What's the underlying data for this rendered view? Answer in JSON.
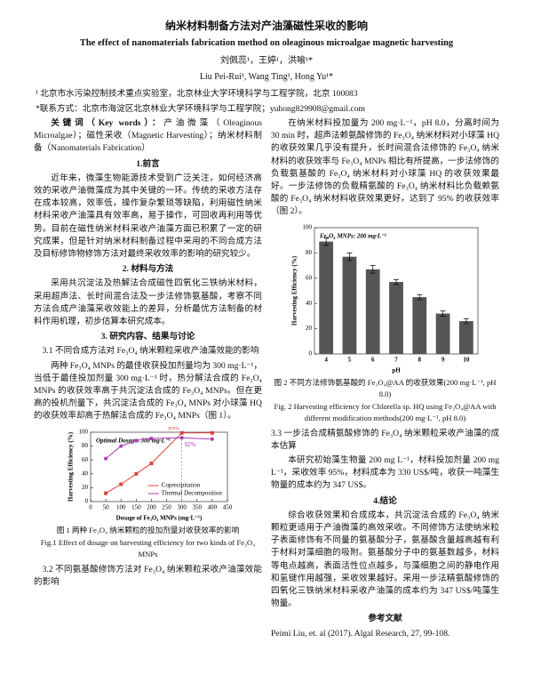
{
  "header": {
    "title": "纳米材料制备方法对产油藻磁性采收的影响",
    "subtitle": "The effect of nanomaterials fabrication method on oleaginous microalgae magnetic harvesting",
    "authors_cn": "刘佩蕊¹，王婷¹，洪喻¹*",
    "authors_en": "Liu Pei-Rui¹, Wang Ting¹, Hong Yu¹*",
    "affiliation": "¹ 北京市水污染控制技术重点实验室，北京林业大学环境科学与工程学院，北京 100083",
    "contact": "*联系方式：北京市海淀区北京林业大学环境科学与工程学院；yuhong829908@gmail.com"
  },
  "left": {
    "keywords_label": "关键词（Key words）：",
    "keywords": "产油微藻（Oleaginous Microalgae）；磁性采收（Magnetic Harvesting）；纳米材料制备（Nanomaterials Fabrication）",
    "intro_heading": "1.前言",
    "intro": "近年来，微藻生物能源技术受到广泛关注，如何经济高效的采收产油微藻成为其中关键的一环。传统的采收方法存在成本较高，效率低，操作复杂繁琐等缺陷，利用磁性纳米材料采收产油藻具有效率高，易于操作，可回收再利用等优势。目前在磁性纳米材料采收产油藻方面已积累了一定的研究成果，但是针对纳米材料制备过程中采用的不同合成方法及目标修饰物修饰方法对最终采收效率的影响的研究较少。",
    "methods_heading": "2. 材料与方法",
    "methods": "采用共沉淀法及热解法合成磁性四氧化三铁纳米材料，采用超声法、长时间混合法及一步法修饰氨基酸，考察不同方法合成产油藻采收效能上的差异，分析最优方法制备的材料作用机理，初步估算本研究成本。",
    "results_heading": "3. 研究内容、结果与讨论",
    "s31_heading": "3.1  不同合成方法对 Fe₃O₄ 纳米颗粒采收产油藻效能的影响",
    "s31_text": "两种 Fe₃O₄ MNPs 的最佳收获投加剂量均为 300 mg·L⁻¹，当低于最佳投加剂量 300 mg·L⁻¹ 时，热分解法合成的 Fe₃O₄ MNPs 的收获效率高于共沉淀法合成的 Fe₃O₄ MNPs。但在更高的投机剂量下，共沉淀法合成的 Fe₃O₄ MNPs 对小球藻 HQ 的收获效率却高于热解法合成的 Fe₃O₄ MNPs（图 1）。",
    "fig1_caption_cn": "图 1  两种 Fe₃O₄ 纳米颗粒的投加剂量对收获效率的影响",
    "fig1_caption_en": "Fig.1 Effect of dosage on harvesting efficiency for two kinds of Fe₃O₄ MNPs",
    "s32_heading": "3.2  不同氨基酸修饰方法对 Fe₃O₄ 纳米颗粒采收产油藻效能的影响"
  },
  "right": {
    "s32_text": "在纳米材料投加量为 200 mg·L⁻¹，pH 8.0，分离时间为 30 min 时，超声法赖氨酸修饰的 Fe₃O₄ 纳米材料对小球藻 HQ 的收获效果几乎没有提升，长时间混合法修饰的 Fe₃O₄ 纳米材料的收获效率与 Fe₃O₄ MNPs 相比有所提高，一步法修饰的负载氨基酸的 Fe₃O₄ 纳米材料对小球藻 HQ 的收获效果最好。一步法修饰的负载精氨酸的 Fe₃O₄ 纳米材料比负载赖氨酸的 Fe₃O₄ 纳米材料收获效果更好，达到了 95% 的收获效率（图 2）。",
    "fig2_caption_cn": "图 2  不同方法修饰氨基酸的 Fe₃O₄@AA 的收获效果(200 mg·L⁻¹, pH 8.0)",
    "fig2_caption_en": "Fig. 2 Harvesting efficiency for Chlorella sp. HQ using Fe₃O₄@AA with different modification methods(200 mg·L⁻¹, pH 8.0)",
    "s33_heading": "3.3  一步法合成精氨酸修饰的 Fe₃O₄ 纳米颗粒采收产油藻的成本估算",
    "s33_text": "本研究初始藻生物量 200 mg L⁻¹，材料投加剂量 200 mg L⁻¹，采收效率 95%，材料成本为 330 US$/吨，收获一吨藻生物量的成本约为 347 US$。",
    "conclusion_heading": "4.结论",
    "conclusion": "综合收获效果和合成成本，共沉淀法合成的 Fe₃O₄ 纳米颗粒更适用于产油微藻的高效采收。不同修饰方法使纳米粒子表面修饰有不同量的氨基酸分子，氨基酸含量越高越有利于材料对藻细胞的吸附。氨基酸分子中的氨基数越多，材料等电点越高，表面活性位点越多，与藻细胞之间的静电作用和氢键作用越强，采收效果越好。采用一步法精氨酸修饰的四氧化三铁纳米材料采收产油藻的成本约为 347 US$/吨藻生物量。",
    "references_heading": "参考文献",
    "reference": "Peimi Liu, et. al (2017). Algal Research, 27, 99-108."
  },
  "chart_data": [
    {
      "type": "line",
      "annotation": "Optimal Dosage: 300 mg·L⁻¹",
      "xlabel": "Dosage of Fe₃O₄ MNPs (mg·L⁻¹)",
      "ylabel": "Harvesting Efficiency (%)",
      "x": [
        50,
        100,
        150,
        200,
        300,
        400
      ],
      "series": [
        {
          "name": "Coprecipitation",
          "color": "#e0413c",
          "values": [
            12,
            25,
            40,
            55,
            99,
            99
          ],
          "value_labels": [
            null,
            null,
            null,
            null,
            "99%",
            null
          ]
        },
        {
          "name": "Thermal Decomposition",
          "color": "#b03ab8",
          "values": [
            62,
            80,
            88,
            91,
            92,
            90
          ],
          "value_labels": [
            null,
            null,
            null,
            null,
            "92%",
            null
          ]
        }
      ],
      "reference_x": 300,
      "xlim": [
        0,
        450
      ],
      "xticks": [
        0,
        50,
        100,
        150,
        200,
        250,
        300,
        350,
        400,
        450
      ],
      "ylim": [
        0,
        100
      ],
      "yticks": [
        0,
        20,
        40,
        60,
        80,
        100
      ]
    },
    {
      "type": "bar",
      "annotation": "Fe₃O₄ MNPs: 200 mg·L⁻¹",
      "xlabel": "pH",
      "ylabel": "Harvesting Efficiency (%)",
      "categories": [
        "4",
        "5",
        "6",
        "7",
        "8",
        "9",
        "10"
      ],
      "values": [
        89,
        77,
        67,
        57,
        45,
        32,
        26
      ],
      "errors": [
        3,
        3,
        3,
        2,
        2,
        2,
        2
      ],
      "color": "#555555",
      "ylim": [
        0,
        100
      ],
      "yticks": [
        0,
        20,
        40,
        60,
        80,
        100
      ]
    }
  ]
}
